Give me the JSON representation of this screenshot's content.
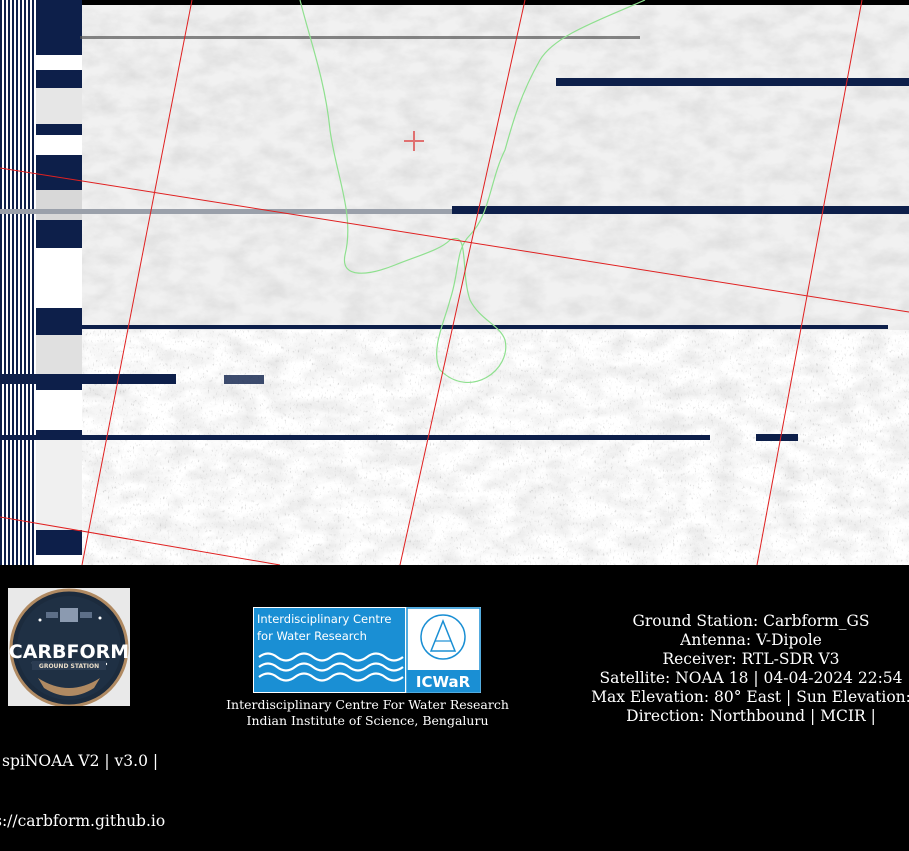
{
  "footer": {
    "left_lines": [
      "spiNOAA V2 | v3.0 |",
      "s://carbform.github.io"
    ],
    "logo_text": {
      "main": "CARBFORM",
      "sub": "GROUND STATION"
    },
    "icwar_logo": {
      "title_line1": "Interdisciplinary Centre",
      "title_line2": "for Water Research",
      "abbr": "ICWaR"
    },
    "center_lines": [
      "Interdisciplinary Centre For Water Research",
      "Indian Institute of Science, Bengaluru"
    ],
    "info_lines": [
      "Ground Station: Carbform_GS",
      "Antenna: V-Dipole",
      "Receiver: RTL-SDR V3",
      "Satellite: NOAA 18 | 04-04-2024 22:54",
      "Max Elevation: 80° East | Sun Elevation:",
      "Direction: Northbound | MCIR |"
    ]
  }
}
